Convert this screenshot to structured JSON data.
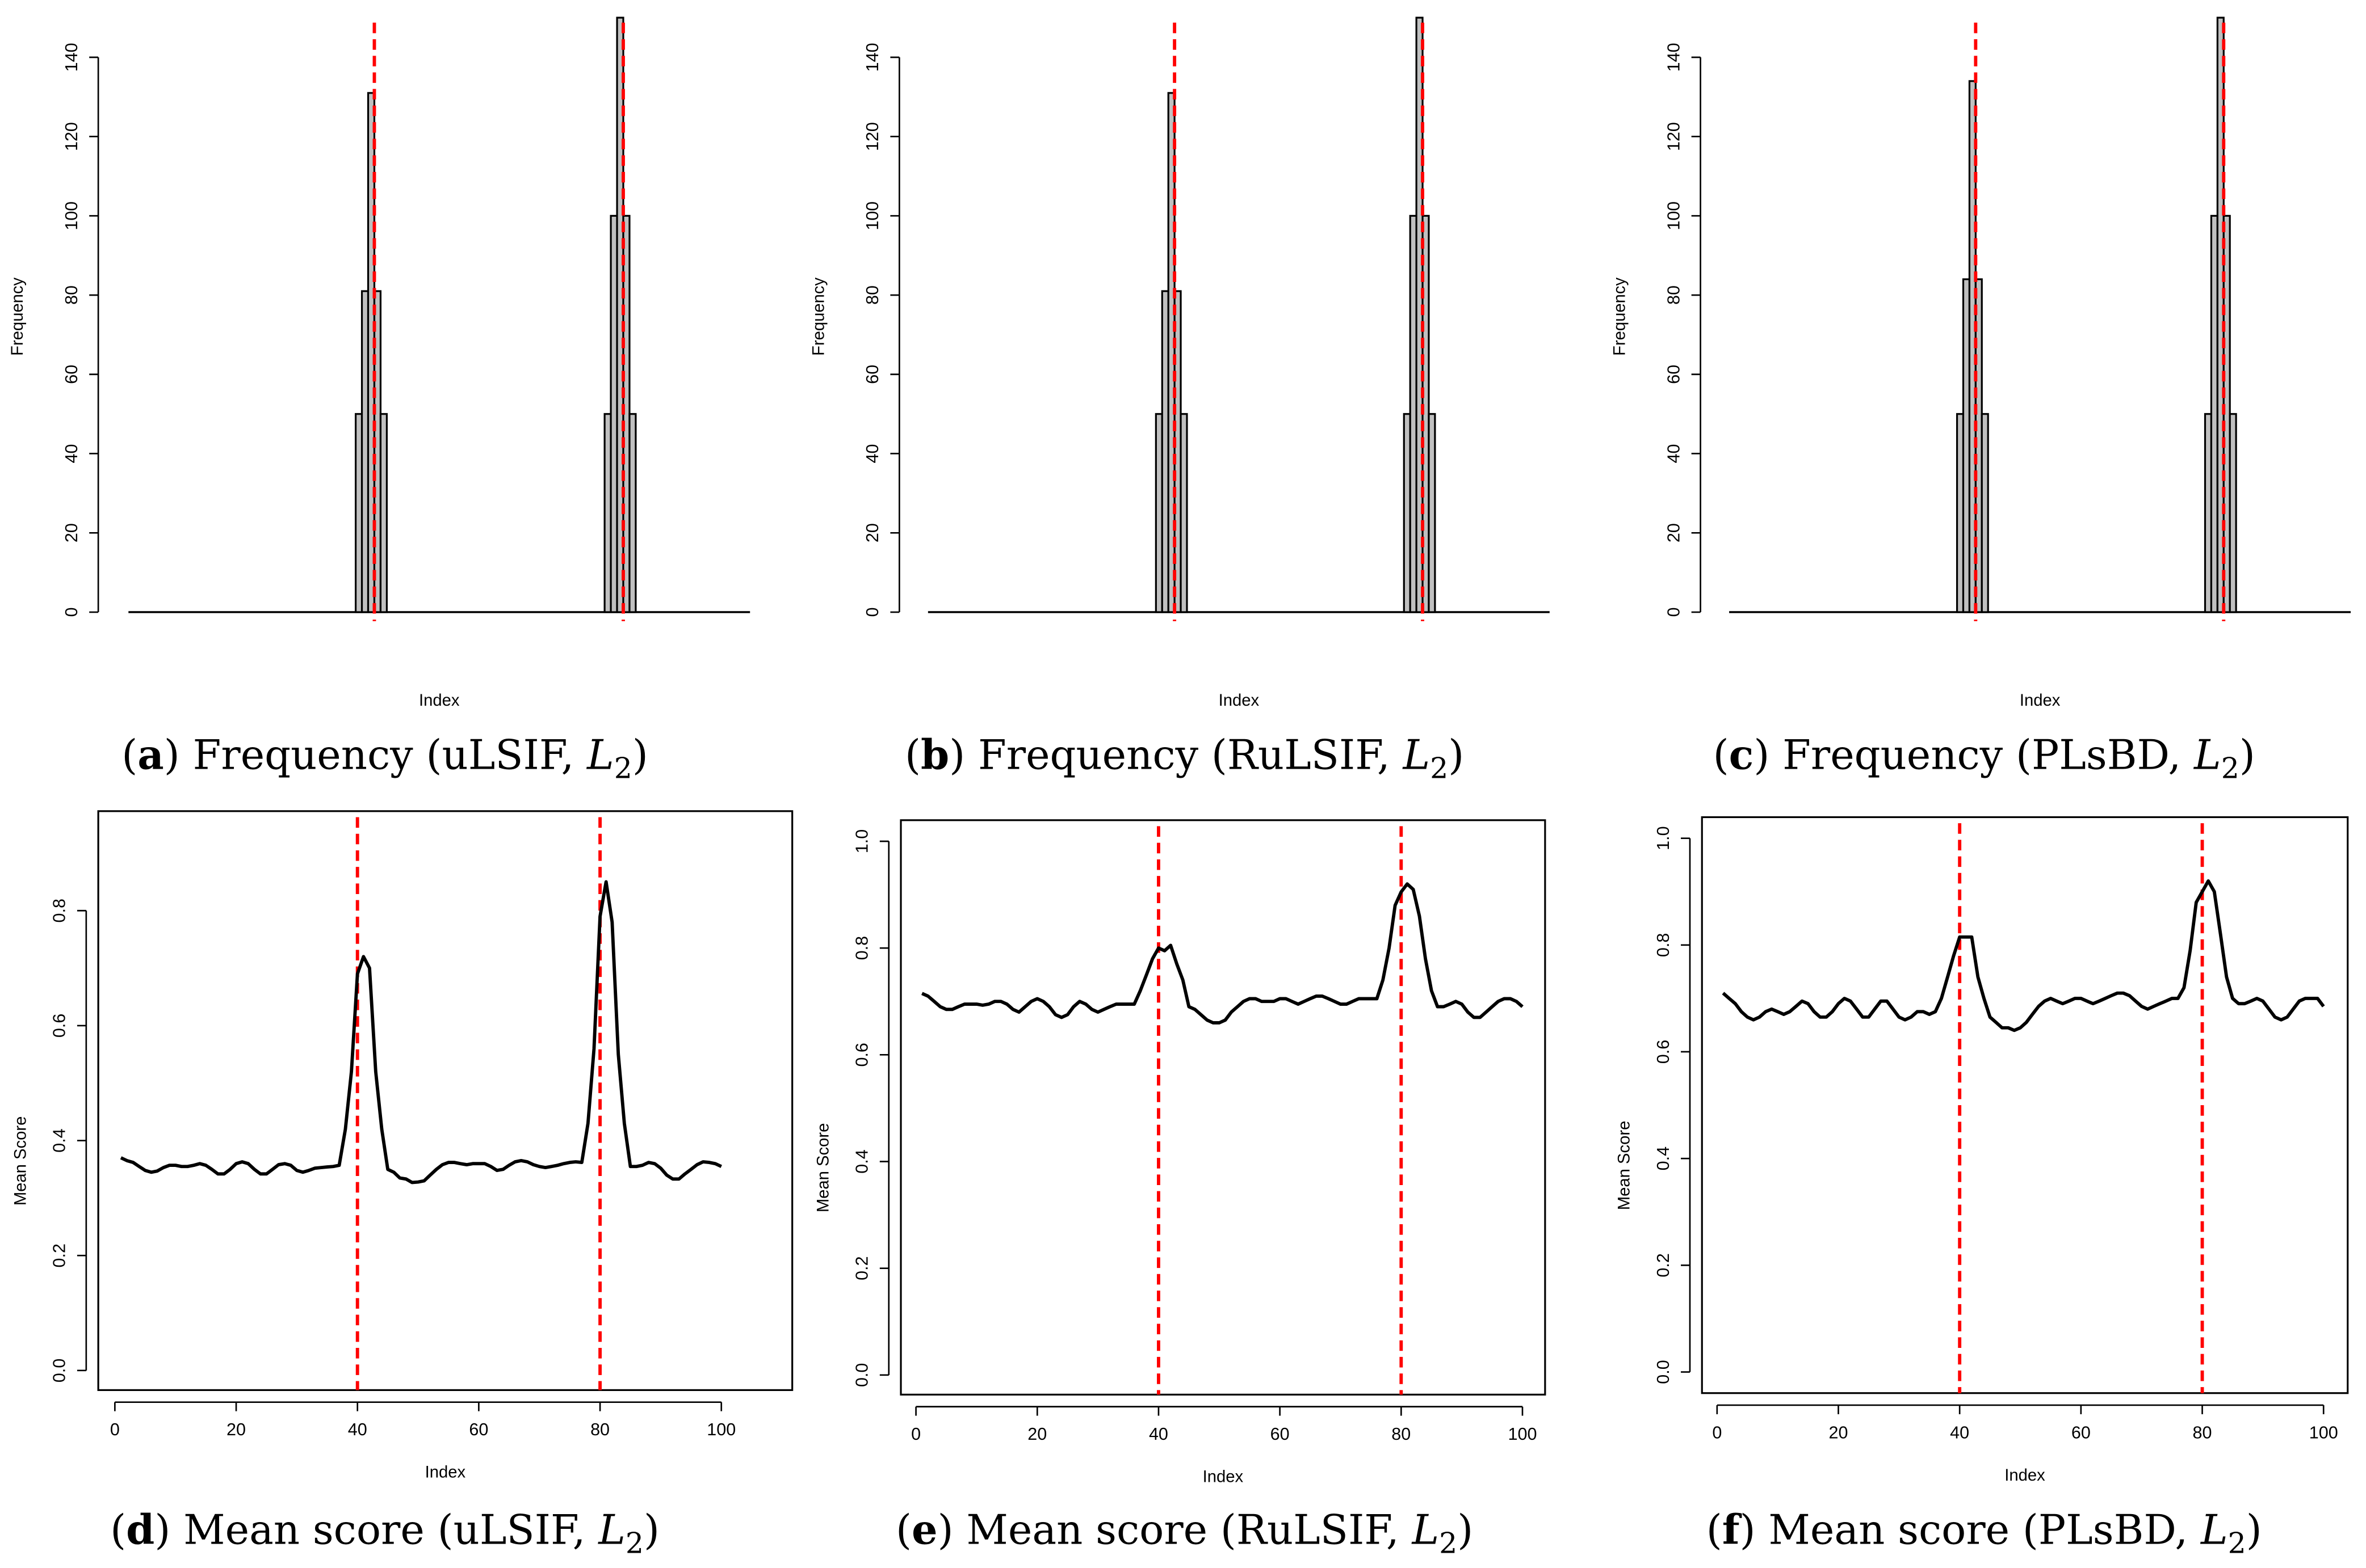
{
  "colors": {
    "bar_fill": "#c0c0c0",
    "line": "#000000",
    "changepoint": "#ff0000"
  },
  "chart_data": [
    {
      "id": "a",
      "type": "bar",
      "xlabel": "Index",
      "ylabel": "Frequency",
      "yticks": [
        0,
        20,
        40,
        60,
        80,
        100,
        120,
        140
      ],
      "ylim": [
        0,
        150
      ],
      "xlim": [
        0.5,
        100.5
      ],
      "changepoints": [
        40,
        80
      ],
      "bins": [
        [
          37,
          38
        ],
        [
          38,
          39
        ],
        [
          39,
          40
        ],
        [
          40,
          41
        ],
        [
          41,
          42
        ],
        [
          77,
          78
        ],
        [
          78,
          79
        ],
        [
          79,
          80
        ],
        [
          80,
          81
        ],
        [
          81,
          82
        ]
      ],
      "values": [
        50,
        81,
        131,
        81,
        50,
        50,
        100,
        152,
        100,
        50
      ],
      "caption": {
        "open": "(",
        "letter": "a",
        "text": ") Frequency (uLSIF, ",
        "var": "L",
        "sub": "2",
        "close": ")"
      }
    },
    {
      "id": "b",
      "type": "bar",
      "xlabel": "Index",
      "ylabel": "Frequency",
      "yticks": [
        0,
        20,
        40,
        60,
        80,
        100,
        120,
        140
      ],
      "ylim": [
        0,
        150
      ],
      "xlim": [
        0.5,
        100.5
      ],
      "changepoints": [
        40,
        80
      ],
      "bins": [
        [
          37,
          38
        ],
        [
          38,
          39
        ],
        [
          39,
          40
        ],
        [
          40,
          41
        ],
        [
          41,
          42
        ],
        [
          77,
          78
        ],
        [
          78,
          79
        ],
        [
          79,
          80
        ],
        [
          80,
          81
        ],
        [
          81,
          82
        ]
      ],
      "values": [
        50,
        81,
        131,
        81,
        50,
        50,
        100,
        152,
        100,
        50
      ],
      "caption": {
        "open": "(",
        "letter": "b",
        "text": ") Frequency (RuLSIF, ",
        "var": "L",
        "sub": "2",
        "close": ")"
      }
    },
    {
      "id": "c",
      "type": "bar",
      "xlabel": "Index",
      "ylabel": "Frequency",
      "yticks": [
        0,
        20,
        40,
        60,
        80,
        100,
        120,
        140
      ],
      "ylim": [
        0,
        150
      ],
      "xlim": [
        0.5,
        100.5
      ],
      "changepoints": [
        40,
        80
      ],
      "bins": [
        [
          37,
          38
        ],
        [
          38,
          39
        ],
        [
          39,
          40
        ],
        [
          40,
          41
        ],
        [
          41,
          42
        ],
        [
          77,
          78
        ],
        [
          78,
          79
        ],
        [
          79,
          80
        ],
        [
          80,
          81
        ],
        [
          81,
          82
        ]
      ],
      "values": [
        50,
        84,
        134,
        84,
        50,
        50,
        100,
        152,
        100,
        50
      ],
      "caption": {
        "open": "(",
        "letter": "c",
        "text": ") Frequency (PLsBD, ",
        "var": "L",
        "sub": "2",
        "close": ")"
      }
    },
    {
      "id": "d",
      "type": "line",
      "xlabel": "Index",
      "ylabel": "Mean Score",
      "xticks": [
        0,
        20,
        40,
        60,
        80,
        100
      ],
      "yticks": [
        "0.0",
        "0.2",
        "0.4",
        "0.6",
        "0.8"
      ],
      "xlim": [
        1,
        100
      ],
      "ylim": [
        0,
        0.95
      ],
      "changepoints": [
        40,
        80
      ],
      "y": [
        0.37,
        0.365,
        0.362,
        0.355,
        0.348,
        0.345,
        0.347,
        0.353,
        0.357,
        0.357,
        0.355,
        0.355,
        0.357,
        0.36,
        0.357,
        0.35,
        0.342,
        0.342,
        0.35,
        0.36,
        0.363,
        0.36,
        0.35,
        0.342,
        0.342,
        0.35,
        0.358,
        0.36,
        0.357,
        0.348,
        0.345,
        0.348,
        0.352,
        0.353,
        0.354,
        0.355,
        0.357,
        0.42,
        0.52,
        0.69,
        0.72,
        0.7,
        0.52,
        0.42,
        0.35,
        0.345,
        0.335,
        0.333,
        0.327,
        0.328,
        0.33,
        0.34,
        0.35,
        0.358,
        0.362,
        0.362,
        0.36,
        0.358,
        0.36,
        0.36,
        0.36,
        0.355,
        0.348,
        0.35,
        0.357,
        0.363,
        0.365,
        0.363,
        0.358,
        0.355,
        0.353,
        0.355,
        0.357,
        0.36,
        0.362,
        0.363,
        0.362,
        0.43,
        0.56,
        0.79,
        0.85,
        0.78,
        0.55,
        0.43,
        0.355,
        0.355,
        0.357,
        0.362,
        0.36,
        0.352,
        0.34,
        0.333,
        0.333,
        0.342,
        0.35,
        0.358,
        0.363,
        0.362,
        0.36,
        0.355
      ],
      "caption": {
        "open": "(",
        "letter": "d",
        "text": ") Mean score (uLSIF, ",
        "var": "L",
        "sub": "2",
        "close": ")"
      }
    },
    {
      "id": "e",
      "type": "line",
      "xlabel": "Index",
      "ylabel": "Mean Score",
      "xticks": [
        0,
        20,
        40,
        60,
        80,
        100
      ],
      "yticks": [
        "0.0",
        "0.2",
        "0.4",
        "0.6",
        "0.8",
        "1.0"
      ],
      "xlim": [
        1,
        100
      ],
      "ylim": [
        0,
        1.03
      ],
      "changepoints": [
        40,
        80
      ],
      "y": [
        0.715,
        0.71,
        0.7,
        0.69,
        0.685,
        0.685,
        0.69,
        0.695,
        0.695,
        0.695,
        0.693,
        0.695,
        0.7,
        0.7,
        0.695,
        0.685,
        0.68,
        0.69,
        0.7,
        0.705,
        0.7,
        0.69,
        0.675,
        0.67,
        0.675,
        0.69,
        0.7,
        0.695,
        0.685,
        0.68,
        0.685,
        0.69,
        0.695,
        0.695,
        0.695,
        0.695,
        0.72,
        0.75,
        0.78,
        0.8,
        0.795,
        0.805,
        0.77,
        0.74,
        0.69,
        0.685,
        0.675,
        0.665,
        0.66,
        0.66,
        0.665,
        0.68,
        0.69,
        0.7,
        0.705,
        0.705,
        0.7,
        0.7,
        0.7,
        0.705,
        0.705,
        0.7,
        0.695,
        0.7,
        0.705,
        0.71,
        0.71,
        0.705,
        0.7,
        0.695,
        0.695,
        0.7,
        0.705,
        0.705,
        0.705,
        0.705,
        0.74,
        0.8,
        0.88,
        0.905,
        0.92,
        0.91,
        0.86,
        0.78,
        0.72,
        0.69,
        0.69,
        0.695,
        0.7,
        0.695,
        0.68,
        0.67,
        0.67,
        0.68,
        0.69,
        0.7,
        0.705,
        0.705,
        0.7,
        0.69
      ],
      "caption": {
        "open": "(",
        "letter": "e",
        "text": ") Mean score (RuLSIF, ",
        "var": "L",
        "sub": "2",
        "close": ")"
      }
    },
    {
      "id": "f",
      "type": "line",
      "xlabel": "Index",
      "ylabel": "Mean Score",
      "xticks": [
        0,
        20,
        40,
        60,
        80,
        100
      ],
      "yticks": [
        "0.0",
        "0.2",
        "0.4",
        "0.6",
        "0.8",
        "1.0"
      ],
      "xlim": [
        1,
        100
      ],
      "ylim": [
        0,
        1.03
      ],
      "changepoints": [
        40,
        80
      ],
      "y": [
        0.71,
        0.7,
        0.69,
        0.675,
        0.665,
        0.66,
        0.665,
        0.675,
        0.68,
        0.675,
        0.67,
        0.675,
        0.685,
        0.695,
        0.69,
        0.675,
        0.665,
        0.665,
        0.675,
        0.69,
        0.7,
        0.695,
        0.68,
        0.665,
        0.665,
        0.68,
        0.695,
        0.695,
        0.68,
        0.665,
        0.66,
        0.665,
        0.675,
        0.675,
        0.67,
        0.675,
        0.7,
        0.74,
        0.78,
        0.815,
        0.815,
        0.815,
        0.74,
        0.7,
        0.665,
        0.655,
        0.645,
        0.645,
        0.64,
        0.645,
        0.655,
        0.67,
        0.685,
        0.695,
        0.7,
        0.695,
        0.69,
        0.695,
        0.7,
        0.7,
        0.695,
        0.69,
        0.695,
        0.7,
        0.705,
        0.71,
        0.71,
        0.705,
        0.695,
        0.685,
        0.68,
        0.685,
        0.69,
        0.695,
        0.7,
        0.7,
        0.72,
        0.79,
        0.88,
        0.9,
        0.92,
        0.9,
        0.82,
        0.74,
        0.7,
        0.69,
        0.69,
        0.695,
        0.7,
        0.695,
        0.68,
        0.665,
        0.66,
        0.665,
        0.68,
        0.695,
        0.7,
        0.7,
        0.7,
        0.685
      ],
      "caption": {
        "open": "(",
        "letter": "f",
        "text": ") Mean score (PLsBD, ",
        "var": "L",
        "sub": "2",
        "close": ")"
      }
    }
  ]
}
